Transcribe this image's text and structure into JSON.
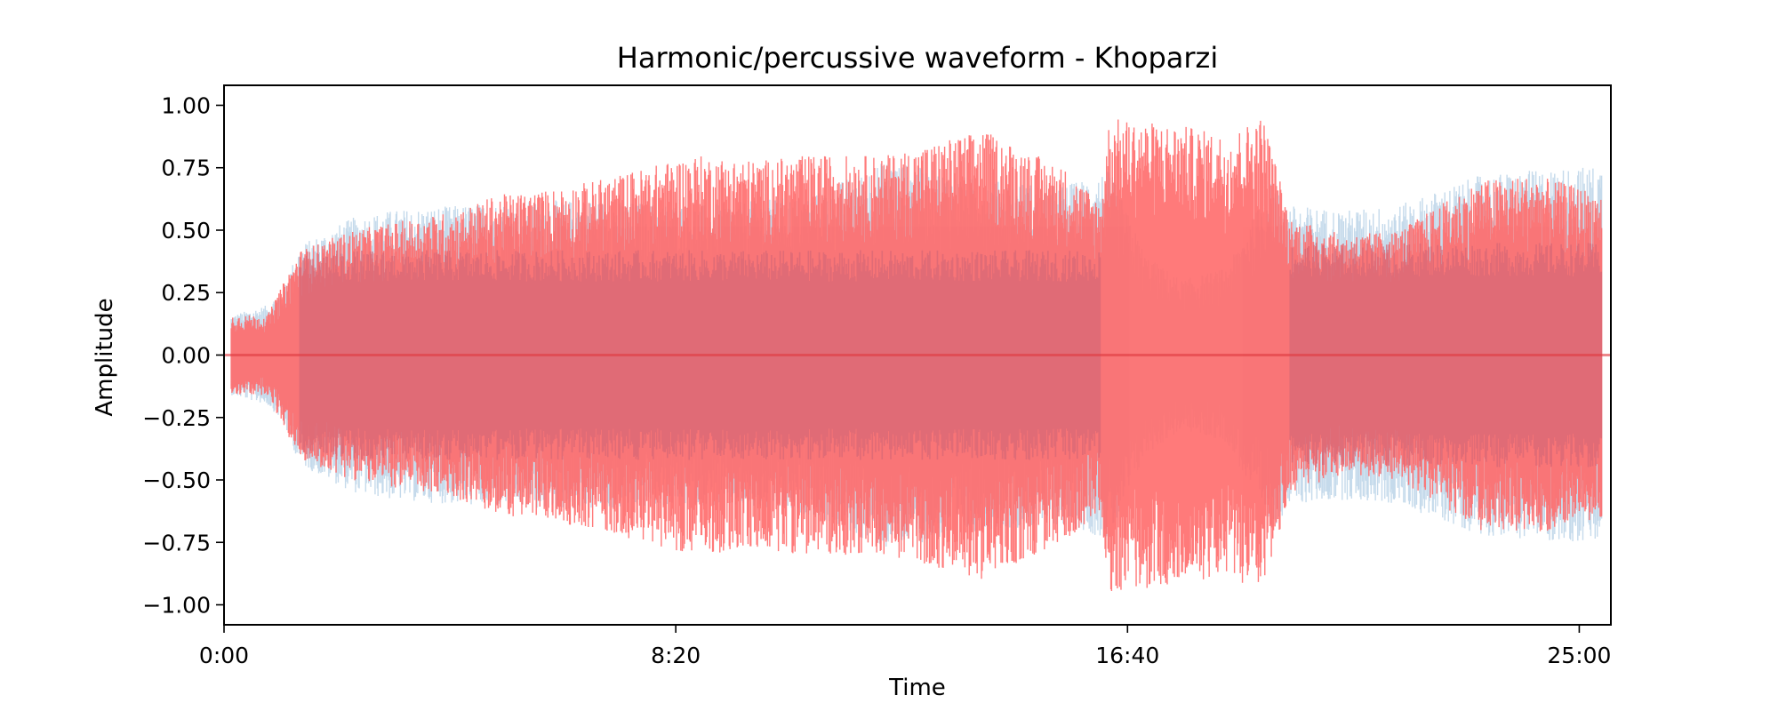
{
  "chart_data": {
    "type": "area",
    "title": "Harmonic/percussive waveform - Khoparzi",
    "xlabel": "Time",
    "ylabel": "Amplitude",
    "x_unit": "seconds",
    "xlim": [
      0,
      1535
    ],
    "ylim": [
      -1.08,
      1.08
    ],
    "x_ticks": [
      {
        "value": 0,
        "label": "0:00"
      },
      {
        "value": 500,
        "label": "8:20"
      },
      {
        "value": 1000,
        "label": "16:40"
      },
      {
        "value": 1500,
        "label": "25:00"
      }
    ],
    "y_ticks": [
      {
        "value": 1.0,
        "label": "1.00"
      },
      {
        "value": 0.75,
        "label": "0.75"
      },
      {
        "value": 0.5,
        "label": "0.50"
      },
      {
        "value": 0.25,
        "label": "0.25"
      },
      {
        "value": 0.0,
        "label": "0.00"
      },
      {
        "value": -0.25,
        "label": "−0.25"
      },
      {
        "value": -0.5,
        "label": "−0.50"
      },
      {
        "value": -0.75,
        "label": "−0.75"
      },
      {
        "value": -1.0,
        "label": "−1.00"
      }
    ],
    "grid": false,
    "legend": "none",
    "series": [
      {
        "role": "harmonic",
        "color": "#a6c6e1",
        "opacity": 0.65,
        "envelope": {
          "t": [
            8,
            48,
            64,
            84,
            142,
            185,
            260,
            355,
            412,
            520,
            590,
            650,
            733,
            840,
            930,
            980,
            1020,
            1060,
            1110,
            1160,
            1180,
            1240,
            1300,
            1390,
            1450,
            1525
          ],
          "amp": [
            0.16,
            0.2,
            0.26,
            0.44,
            0.55,
            0.58,
            0.6,
            0.62,
            0.62,
            0.6,
            0.62,
            0.64,
            0.78,
            0.7,
            0.68,
            0.74,
            0.4,
            0.3,
            0.35,
            0.7,
            0.6,
            0.58,
            0.6,
            0.72,
            0.74,
            0.76
          ]
        }
      },
      {
        "role": "percussive",
        "color": "#ff6b6b",
        "opacity": 0.9,
        "envelope": {
          "t": [
            8,
            48,
            84,
            142,
            260,
            300,
            355,
            412,
            520,
            590,
            650,
            733,
            840,
            930,
            970,
            980,
            1060,
            1110,
            1150,
            1180,
            1240,
            1300,
            1390,
            1450,
            1525
          ],
          "amp": [
            0.16,
            0.16,
            0.42,
            0.5,
            0.58,
            0.64,
            0.66,
            0.7,
            0.8,
            0.78,
            0.8,
            0.8,
            0.9,
            0.75,
            0.62,
            0.95,
            0.92,
            0.88,
            0.96,
            0.55,
            0.48,
            0.5,
            0.7,
            0.72,
            0.65
          ]
        },
        "inner_dark_band": [
          {
            "t_start": 84,
            "t_end": 970,
            "amp": 0.42
          },
          {
            "t_start": 1180,
            "t_end": 1525,
            "amp": 0.45
          }
        ]
      }
    ]
  }
}
